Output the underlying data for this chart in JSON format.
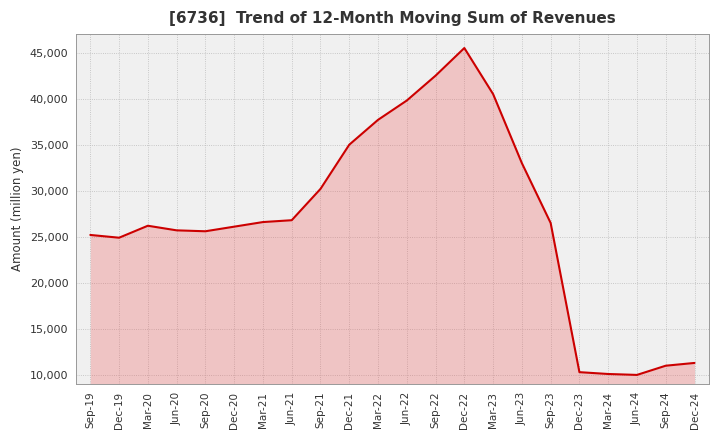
{
  "title": "[6736]  Trend of 12-Month Moving Sum of Revenues",
  "ylabel": "Amount (million yen)",
  "line_color": "#cc0000",
  "fill_color": "#ee4444",
  "fill_alpha": 0.25,
  "background_color": "#ffffff",
  "plot_background": "#f0f0f0",
  "grid_color": "#bbbbbb",
  "title_color": "#333333",
  "ylim": [
    9000,
    47000
  ],
  "yticks": [
    10000,
    15000,
    20000,
    25000,
    30000,
    35000,
    40000,
    45000
  ],
  "labels": [
    "Sep-19",
    "Dec-19",
    "Mar-20",
    "Jun-20",
    "Sep-20",
    "Dec-20",
    "Mar-21",
    "Jun-21",
    "Sep-21",
    "Dec-21",
    "Mar-22",
    "Jun-22",
    "Sep-22",
    "Dec-22",
    "Mar-23",
    "Jun-23",
    "Sep-23",
    "Dec-23",
    "Mar-24",
    "Jun-24",
    "Sep-24",
    "Dec-24"
  ],
  "values": [
    25200,
    24900,
    26200,
    25700,
    25600,
    26100,
    26600,
    26800,
    30200,
    35000,
    37700,
    39800,
    42500,
    45500,
    40500,
    33000,
    26500,
    10300,
    10100,
    10000,
    11000,
    11300
  ]
}
